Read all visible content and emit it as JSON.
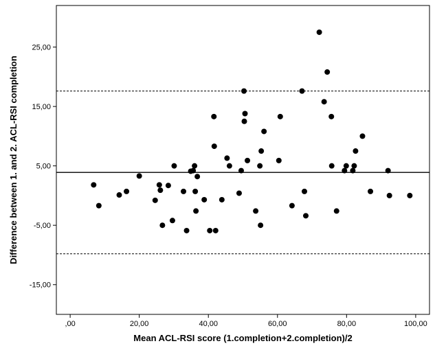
{
  "chart_data": {
    "type": "scatter",
    "title": "",
    "xlabel": "Mean ACL-RSI score (1.completion+2.completion)/2",
    "ylabel": "Difference between 1. and 2. ACL-RSI completion",
    "xlim": [
      -4,
      104
    ],
    "ylim": [
      -20,
      32
    ],
    "x_ticks": [
      0,
      20,
      40,
      60,
      80,
      100
    ],
    "x_tick_labels": [
      ",00",
      "20,00",
      "40,00",
      "60,00",
      "80,00",
      "100,00"
    ],
    "y_ticks": [
      -15,
      -5,
      5,
      15,
      25
    ],
    "y_tick_labels": [
      "-15,00",
      "-5,00",
      "5,00",
      "15,00",
      "25,00"
    ],
    "grid": false,
    "reference_lines": [
      {
        "type": "mean",
        "y": 3.9,
        "style": "solid"
      },
      {
        "type": "upper_limit",
        "y": 17.6,
        "style": "dashed"
      },
      {
        "type": "lower_limit",
        "y": -9.8,
        "style": "dashed"
      }
    ],
    "marker_color": "#000000",
    "points": [
      {
        "x": 6.8,
        "y": 1.8
      },
      {
        "x": 8.3,
        "y": -1.7
      },
      {
        "x": 14.2,
        "y": 0.1
      },
      {
        "x": 16.3,
        "y": 0.7
      },
      {
        "x": 20.0,
        "y": 3.3
      },
      {
        "x": 24.6,
        "y": -0.8
      },
      {
        "x": 25.8,
        "y": 1.8
      },
      {
        "x": 26.1,
        "y": 0.9
      },
      {
        "x": 26.7,
        "y": -5.0
      },
      {
        "x": 28.4,
        "y": 1.7
      },
      {
        "x": 29.6,
        "y": -4.2
      },
      {
        "x": 30.1,
        "y": 5.0
      },
      {
        "x": 32.8,
        "y": 0.7
      },
      {
        "x": 33.7,
        "y": -5.9
      },
      {
        "x": 34.9,
        "y": 4.1
      },
      {
        "x": 35.6,
        "y": 4.2
      },
      {
        "x": 36.0,
        "y": 5.0
      },
      {
        "x": 36.2,
        "y": 0.7
      },
      {
        "x": 36.4,
        "y": -2.6
      },
      {
        "x": 36.8,
        "y": 3.2
      },
      {
        "x": 38.8,
        "y": -0.7
      },
      {
        "x": 40.4,
        "y": -5.9
      },
      {
        "x": 41.6,
        "y": 13.3
      },
      {
        "x": 41.7,
        "y": 8.3
      },
      {
        "x": 42.1,
        "y": -5.9
      },
      {
        "x": 43.9,
        "y": -0.7
      },
      {
        "x": 45.4,
        "y": 6.3
      },
      {
        "x": 46.1,
        "y": 5.0
      },
      {
        "x": 48.9,
        "y": 0.4
      },
      {
        "x": 49.5,
        "y": 4.2
      },
      {
        "x": 50.3,
        "y": 17.6
      },
      {
        "x": 50.4,
        "y": 12.5
      },
      {
        "x": 50.6,
        "y": 13.8
      },
      {
        "x": 51.3,
        "y": 5.9
      },
      {
        "x": 53.7,
        "y": -2.6
      },
      {
        "x": 54.9,
        "y": 5.0
      },
      {
        "x": 55.1,
        "y": -5.0
      },
      {
        "x": 55.3,
        "y": 7.5
      },
      {
        "x": 56.1,
        "y": 10.8
      },
      {
        "x": 60.4,
        "y": 5.9
      },
      {
        "x": 60.8,
        "y": 13.3
      },
      {
        "x": 64.2,
        "y": -1.7
      },
      {
        "x": 67.1,
        "y": 17.6
      },
      {
        "x": 67.8,
        "y": 0.7
      },
      {
        "x": 68.2,
        "y": -3.4
      },
      {
        "x": 72.1,
        "y": 27.5
      },
      {
        "x": 73.5,
        "y": 15.8
      },
      {
        "x": 74.4,
        "y": 20.8
      },
      {
        "x": 75.6,
        "y": 13.3
      },
      {
        "x": 75.7,
        "y": 5.0
      },
      {
        "x": 77.1,
        "y": -2.6
      },
      {
        "x": 79.4,
        "y": 4.2
      },
      {
        "x": 79.9,
        "y": 5.0
      },
      {
        "x": 81.8,
        "y": 4.2
      },
      {
        "x": 82.2,
        "y": 5.0
      },
      {
        "x": 82.6,
        "y": 7.5
      },
      {
        "x": 84.6,
        "y": 10.0
      },
      {
        "x": 86.9,
        "y": 0.7
      },
      {
        "x": 92.0,
        "y": 4.2
      },
      {
        "x": 92.4,
        "y": 0.0
      },
      {
        "x": 98.3,
        "y": 0.0
      }
    ]
  }
}
